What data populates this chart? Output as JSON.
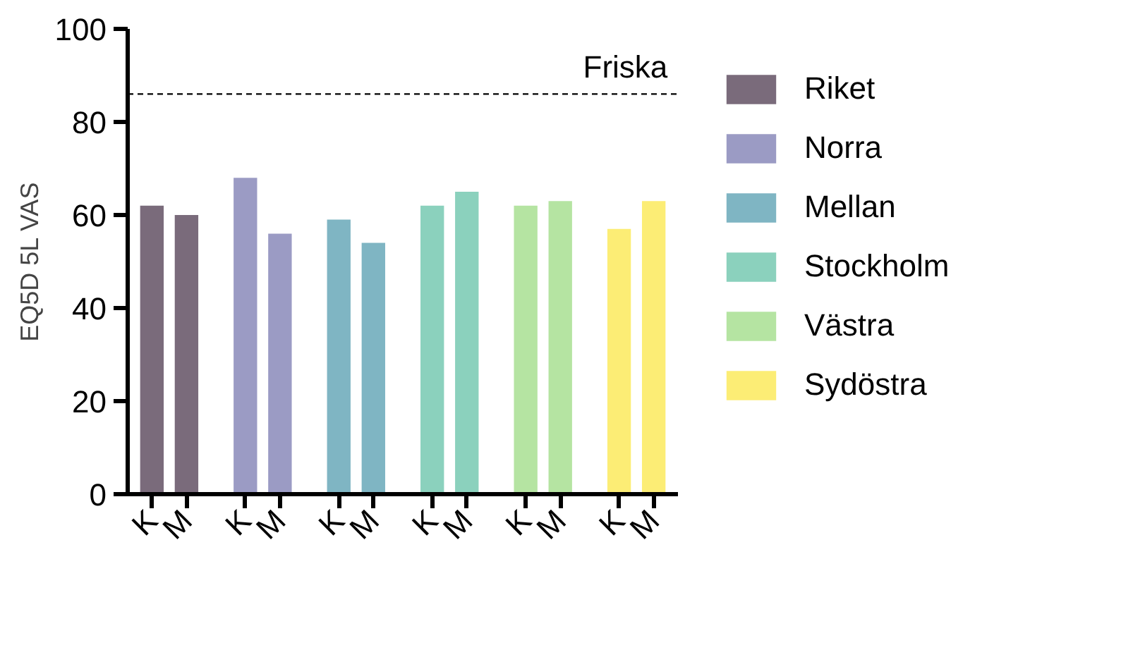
{
  "chart_data": {
    "type": "bar",
    "ylabel": "EQ5D 5L VAS",
    "categories": [
      "K",
      "M",
      "K",
      "M",
      "K",
      "M",
      "K",
      "M",
      "K",
      "M",
      "K",
      "M"
    ],
    "series": [
      {
        "name": "Riket",
        "color": "#7a6b7b",
        "values": [
          62,
          60,
          null,
          null,
          null,
          null,
          null,
          null,
          null,
          null,
          null,
          null
        ]
      },
      {
        "name": "Norra",
        "color": "#9b9bc4",
        "values": [
          null,
          null,
          68,
          56,
          null,
          null,
          null,
          null,
          null,
          null,
          null,
          null
        ]
      },
      {
        "name": "Mellan",
        "color": "#7fb5c3",
        "values": [
          null,
          null,
          null,
          null,
          59,
          54,
          null,
          null,
          null,
          null,
          null,
          null
        ]
      },
      {
        "name": "Stockholm",
        "color": "#8bd1bd",
        "values": [
          null,
          null,
          null,
          null,
          null,
          null,
          62,
          65,
          null,
          null,
          null,
          null
        ]
      },
      {
        "name": "Västra",
        "color": "#b5e4a2",
        "values": [
          null,
          null,
          null,
          null,
          null,
          null,
          null,
          null,
          62,
          63,
          null,
          null
        ]
      },
      {
        "name": "Sydöstra",
        "color": "#fced75",
        "values": [
          null,
          null,
          null,
          null,
          null,
          null,
          null,
          null,
          null,
          null,
          57,
          63
        ]
      }
    ],
    "ylim": [
      0,
      100
    ],
    "yticks": [
      0,
      20,
      40,
      60,
      80,
      100
    ],
    "ref_lines": [
      {
        "axis": "y",
        "value": 86,
        "label": "Friska",
        "line_style": "dashed"
      }
    ],
    "grid": false,
    "legend": "right"
  }
}
